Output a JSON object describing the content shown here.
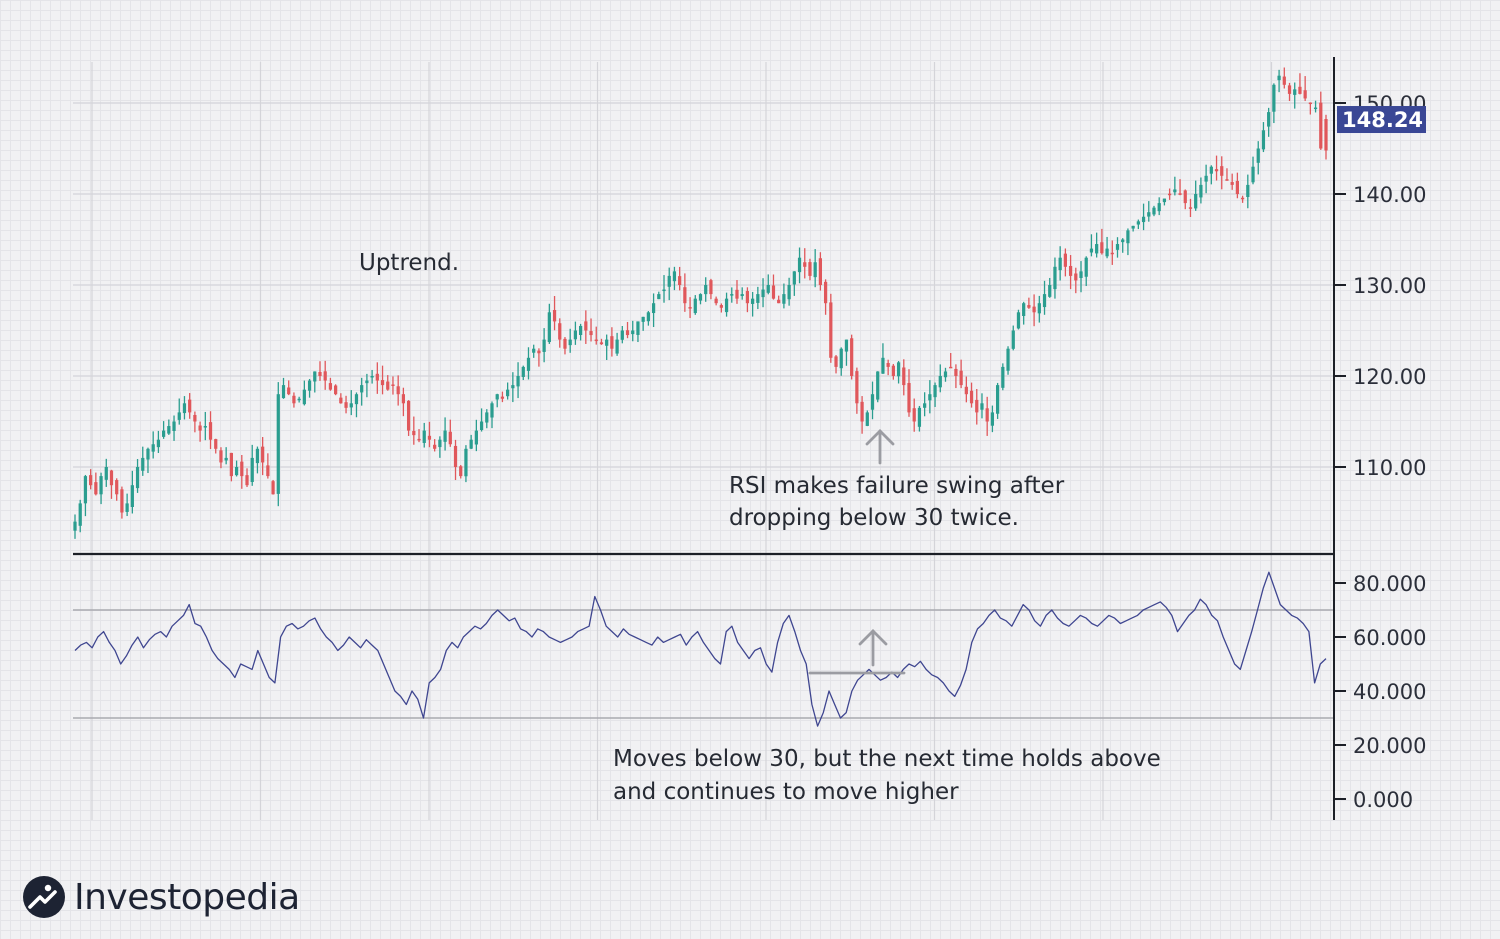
{
  "chart_data": [
    {
      "type": "candlestick",
      "panel": "price",
      "y_ticks": [
        "110.00",
        "120.00",
        "130.00",
        "140.00",
        "150.00"
      ],
      "ylim": [
        100,
        155
      ],
      "last_price": "148.24",
      "closes": [
        104,
        106,
        109,
        108,
        107,
        109,
        110,
        108,
        107,
        105,
        106,
        108,
        110,
        111,
        112,
        112.5,
        113,
        114,
        114.5,
        115,
        116,
        117,
        116,
        115,
        114,
        114.5,
        113,
        112,
        110.5,
        111,
        109,
        110,
        109,
        108,
        111,
        112,
        110.5,
        109,
        107,
        118,
        119,
        118,
        117,
        117.5,
        118.5,
        119.5,
        120.5,
        120,
        119.5,
        118.5,
        118,
        117,
        116.5,
        117,
        118,
        119,
        119.5,
        120,
        119.5,
        119,
        118.5,
        119,
        118,
        117,
        114,
        113.5,
        113,
        114,
        113,
        112,
        113,
        114,
        112.5,
        110,
        109,
        112,
        113,
        114,
        115,
        116,
        117,
        118,
        117.5,
        118.5,
        119,
        120,
        121,
        122,
        123,
        122.5,
        124,
        127,
        126,
        124,
        123,
        124,
        125,
        125.5,
        125,
        124.5,
        124,
        123.5,
        124,
        123,
        124,
        125,
        124.5,
        125,
        126,
        126.5,
        127,
        128,
        129,
        129.5,
        131,
        131.5,
        130,
        128,
        127.5,
        128.5,
        129,
        130,
        129,
        128,
        127.5,
        128.5,
        129,
        128.5,
        129,
        128,
        128.5,
        129,
        129.5,
        130,
        128.5,
        128,
        129,
        130,
        131.5,
        133,
        132,
        131,
        132.5,
        130,
        128,
        122,
        121,
        123,
        124,
        120,
        117,
        115,
        116,
        118,
        120.5,
        122,
        121,
        120,
        121.5,
        119,
        116,
        115,
        116.5,
        117,
        118,
        119,
        120,
        120.5,
        121,
        120,
        119,
        118,
        117,
        116,
        117,
        115,
        116,
        119,
        121,
        123,
        125,
        127,
        128,
        127.5,
        127,
        128,
        129,
        130,
        132,
        133,
        132,
        131,
        130.5,
        131.5,
        133,
        134,
        134.5,
        133.5,
        134,
        133.5,
        134.5,
        135,
        136,
        136.5,
        137,
        137.5,
        138,
        138.5,
        139,
        139.5,
        140,
        140.5,
        140,
        139,
        138.5,
        140,
        141,
        142,
        143,
        142.5,
        142,
        141.5,
        141,
        140,
        139.5,
        141,
        143,
        145,
        147,
        149,
        152,
        153,
        152,
        151,
        151.5,
        151,
        150.5,
        150,
        149.5,
        145,
        148.24
      ],
      "last_up": false
    },
    {
      "type": "line",
      "panel": "rsi",
      "y_ticks": [
        "0.000",
        "20.000",
        "40.000",
        "60.000",
        "80.000"
      ],
      "ylim": [
        -8,
        88
      ],
      "reference_lines": [
        30,
        70
      ],
      "values": [
        55,
        57,
        58,
        56,
        60,
        62,
        58,
        55,
        50,
        53,
        57,
        60,
        56,
        59,
        61,
        62,
        60,
        64,
        66,
        68,
        72,
        65,
        64,
        60,
        55,
        52,
        50,
        48,
        45,
        50,
        49,
        48,
        55,
        50,
        45,
        43,
        60,
        64,
        65,
        63,
        64,
        66,
        67,
        63,
        60,
        58,
        55,
        57,
        60,
        58,
        56,
        59,
        57,
        55,
        50,
        45,
        40,
        38,
        35,
        40,
        37,
        30,
        43,
        45,
        48,
        55,
        58,
        56,
        60,
        62,
        64,
        63,
        65,
        68,
        70,
        68,
        66,
        67,
        63,
        62,
        60,
        63,
        62,
        60,
        59,
        58,
        59,
        60,
        62,
        63,
        64,
        75,
        70,
        64,
        62,
        60,
        63,
        61,
        60,
        59,
        58,
        57,
        60,
        58,
        59,
        60,
        61,
        57,
        60,
        62,
        58,
        55,
        52,
        50,
        62,
        64,
        58,
        55,
        52,
        55,
        56,
        50,
        47,
        58,
        65,
        68,
        62,
        55,
        50,
        35,
        27,
        32,
        40,
        35,
        30,
        32,
        40,
        44,
        46,
        48,
        46,
        44,
        45,
        47,
        45,
        48,
        50,
        49,
        51,
        48,
        46,
        45,
        43,
        40,
        38,
        42,
        48,
        58,
        63,
        65,
        68,
        70,
        67,
        66,
        64,
        68,
        72,
        70,
        66,
        64,
        68,
        70,
        67,
        65,
        64,
        66,
        68,
        67,
        65,
        64,
        66,
        68,
        67,
        65,
        66,
        67,
        68,
        70,
        71,
        72,
        73,
        71,
        68,
        62,
        65,
        68,
        70,
        74,
        72,
        68,
        66,
        60,
        55,
        50,
        48,
        55,
        62,
        70,
        78,
        84,
        78,
        72,
        70,
        68,
        67,
        65,
        62,
        43,
        50,
        52
      ],
      "x_gridlines": 8
    }
  ],
  "annotations": {
    "uptrend": "Uptrend.",
    "rsi_failure_line1": "RSI makes failure swing after",
    "rsi_failure_line2": "dropping below 30 twice.",
    "moves_below_line1": "Moves below 30, but the next time holds above",
    "moves_below_line2": "and continues to move higher"
  },
  "colors": {
    "up": "#2a9d8f",
    "down": "#e0575b",
    "rsi_line": "#3f4690",
    "badge": "#3a4795",
    "text": "#262a33"
  },
  "logo": {
    "name": "Investopedia",
    "icon": "investopedia-logo-icon"
  }
}
